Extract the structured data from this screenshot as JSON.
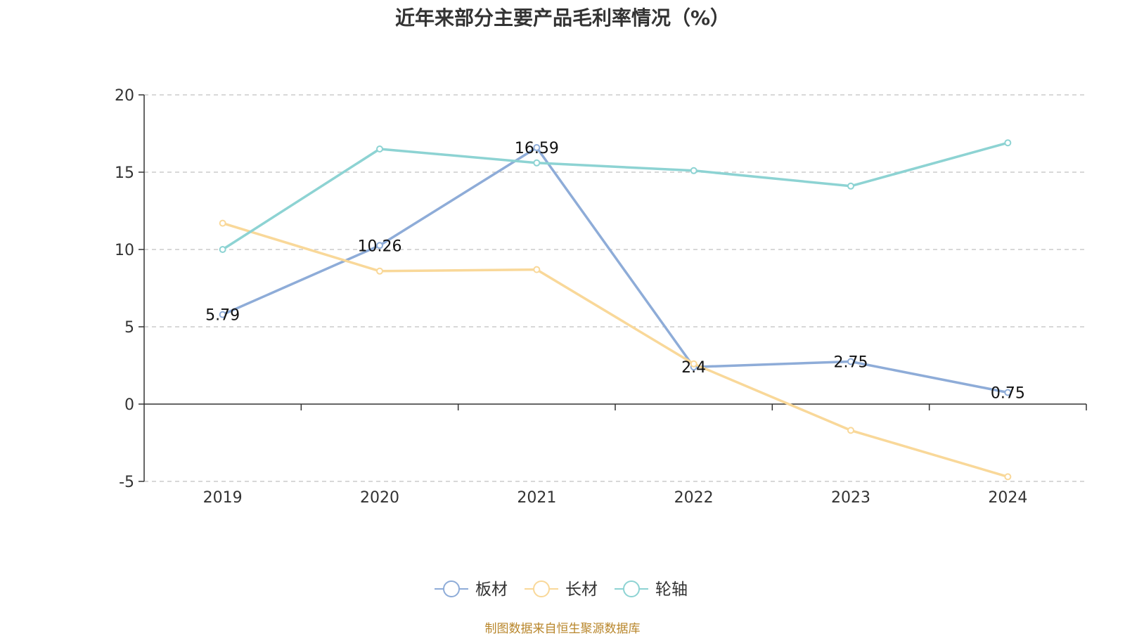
{
  "title": "近年来部分主要产品毛利率情况（%）",
  "source": "制图数据来自恒生聚源数据库",
  "chart_data": {
    "type": "line",
    "title": "近年来部分主要产品毛利率情况（%）",
    "categories": [
      "2019",
      "2020",
      "2021",
      "2022",
      "2023",
      "2024"
    ],
    "ylim": [
      -5,
      20
    ],
    "yticks": [
      "20",
      "15",
      "10",
      "5",
      "0",
      "-5"
    ],
    "grid": true,
    "legend_position": "bottom",
    "series": [
      {
        "name": "板材",
        "color": "#8eacd8",
        "values": [
          5.79,
          10.26,
          16.59,
          2.4,
          2.75,
          0.75
        ],
        "labels": [
          "5.79",
          "10.26",
          "16.59",
          "2.4",
          "2.75",
          "0.75"
        ]
      },
      {
        "name": "长材",
        "color": "#f9d899",
        "values": [
          11.7,
          8.6,
          8.7,
          2.6,
          -1.7,
          -4.7
        ]
      },
      {
        "name": "轮轴",
        "color": "#8dd3d3",
        "values": [
          10.0,
          16.5,
          15.6,
          15.1,
          14.1,
          16.9
        ]
      }
    ]
  }
}
